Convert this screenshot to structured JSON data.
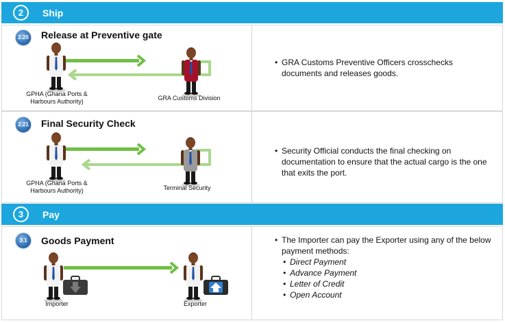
{
  "sections": {
    "ship": {
      "number": "2",
      "label": "Ship"
    },
    "pay": {
      "number": "3",
      "label": "Pay"
    }
  },
  "steps": {
    "release": {
      "badge": "2.20",
      "title": "Release at Preventive gate",
      "left_actor": "GPHA (Ghana Ports & Harbours Authority)",
      "right_actor": "GRA Customs Division",
      "description": "GRA Customs Preventive Officers crosschecks documents and releases goods."
    },
    "security": {
      "badge": "2.21",
      "title": "Final Security Check",
      "left_actor": "GPHA (Ghana Ports & Harbours Authority)",
      "right_actor": "Terminal Security",
      "description": "Security Official conducts the final checking on documentation to ensure that the actual cargo is the one that exits the port."
    },
    "payment": {
      "badge": "3.1",
      "title": "Goods  Payment",
      "left_actor": "Importer",
      "right_actor": "Exporter",
      "description": "The Importer can pay the Exporter using any of the below payment methods:",
      "methods": [
        "Direct Payment",
        "Advance Payment",
        "Letter of Credit",
        "Open Account"
      ]
    }
  },
  "colors": {
    "section_bar": "#1ca6dd",
    "arrow_dark": "#6fbf44",
    "arrow_light": "#a9d88c",
    "shirt_white": "#f2f2f2",
    "shirt_red": "#a4122a",
    "shirt_grey": "#9a9a9a"
  }
}
